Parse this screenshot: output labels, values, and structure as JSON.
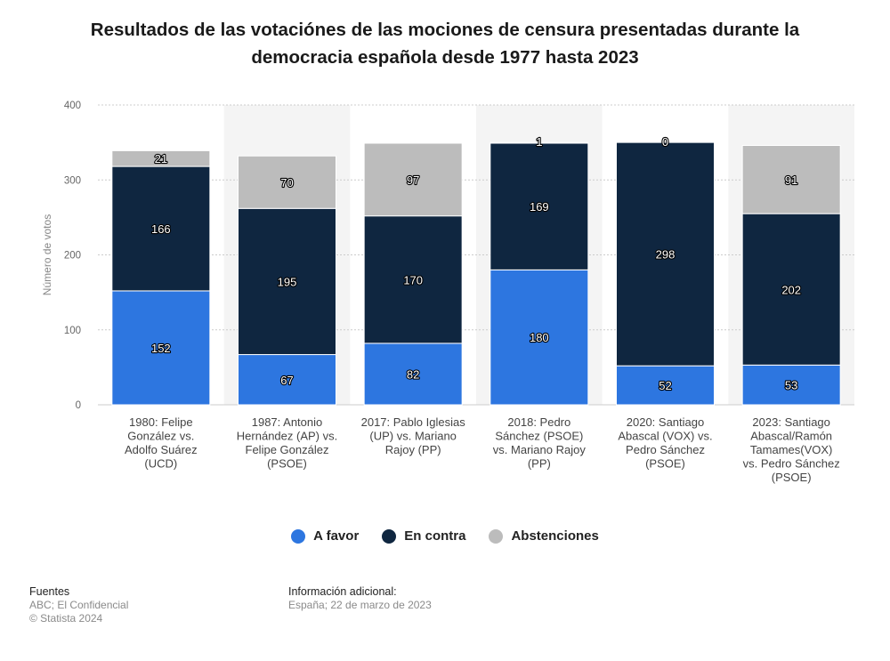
{
  "title": "Resultados de las votaciónes de las mociones de censura presentadas durante la democracia española desde 1977 hasta 2023",
  "colors": {
    "a_favor": "#2d76e0",
    "en_contra": "#0f2640",
    "abstenciones": "#bcbcbc",
    "band": "#f4f4f4",
    "grid": "#cccccc",
    "axis_text": "#666666"
  },
  "chart_data": {
    "type": "bar",
    "stacked": true,
    "categories": [
      "1980: Felipe González vs. Adolfo Suárez (UCD)",
      "1987: Antonio Hernández (AP) vs. Felipe González (PSOE)",
      "2017: Pablo Iglesias (UP) vs. Mariano Rajoy (PP)",
      "2018: Pedro Sánchez (PSOE) vs. Mariano Rajoy (PP)",
      "2020: Santiago Abascal (VOX) vs. Pedro Sánchez (PSOE)",
      "2023: Santiago Abascal/Ramón Tamames(VOX) vs. Pedro Sánchez (PSOE)"
    ],
    "category_lines": [
      [
        "1980: Felipe",
        "González vs.",
        "Adolfo Suárez",
        "(UCD)"
      ],
      [
        "1987: Antonio",
        "Hernández (AP) vs.",
        "Felipe González",
        "(PSOE)"
      ],
      [
        "2017: Pablo Iglesias",
        "(UP) vs. Mariano",
        "Rajoy (PP)"
      ],
      [
        "2018: Pedro",
        "Sánchez (PSOE)",
        "vs. Mariano Rajoy",
        "(PP)"
      ],
      [
        "2020: Santiago",
        "Abascal (VOX) vs.",
        "Pedro Sánchez",
        "(PSOE)"
      ],
      [
        "2023: Santiago",
        "Abascal/Ramón",
        "Tamames(VOX)",
        "vs. Pedro Sánchez",
        "(PSOE)"
      ]
    ],
    "series": [
      {
        "name": "A favor",
        "values": [
          152,
          67,
          82,
          180,
          52,
          53
        ]
      },
      {
        "name": "En contra",
        "values": [
          166,
          195,
          170,
          169,
          298,
          202
        ]
      },
      {
        "name": "Abstenciones",
        "values": [
          21,
          70,
          97,
          1,
          0,
          91
        ]
      }
    ],
    "ylabel": "Número de votos",
    "ylim": [
      0,
      400
    ],
    "yticks": [
      0,
      100,
      200,
      300,
      400
    ],
    "grid": true,
    "legend_position": "bottom"
  },
  "footer": {
    "sources_title": "Fuentes",
    "sources_lines": [
      "ABC; El Confidencial",
      "© Statista 2024"
    ],
    "info_title": "Información adicional:",
    "info_lines": [
      "España; 22 de marzo de 2023"
    ]
  }
}
